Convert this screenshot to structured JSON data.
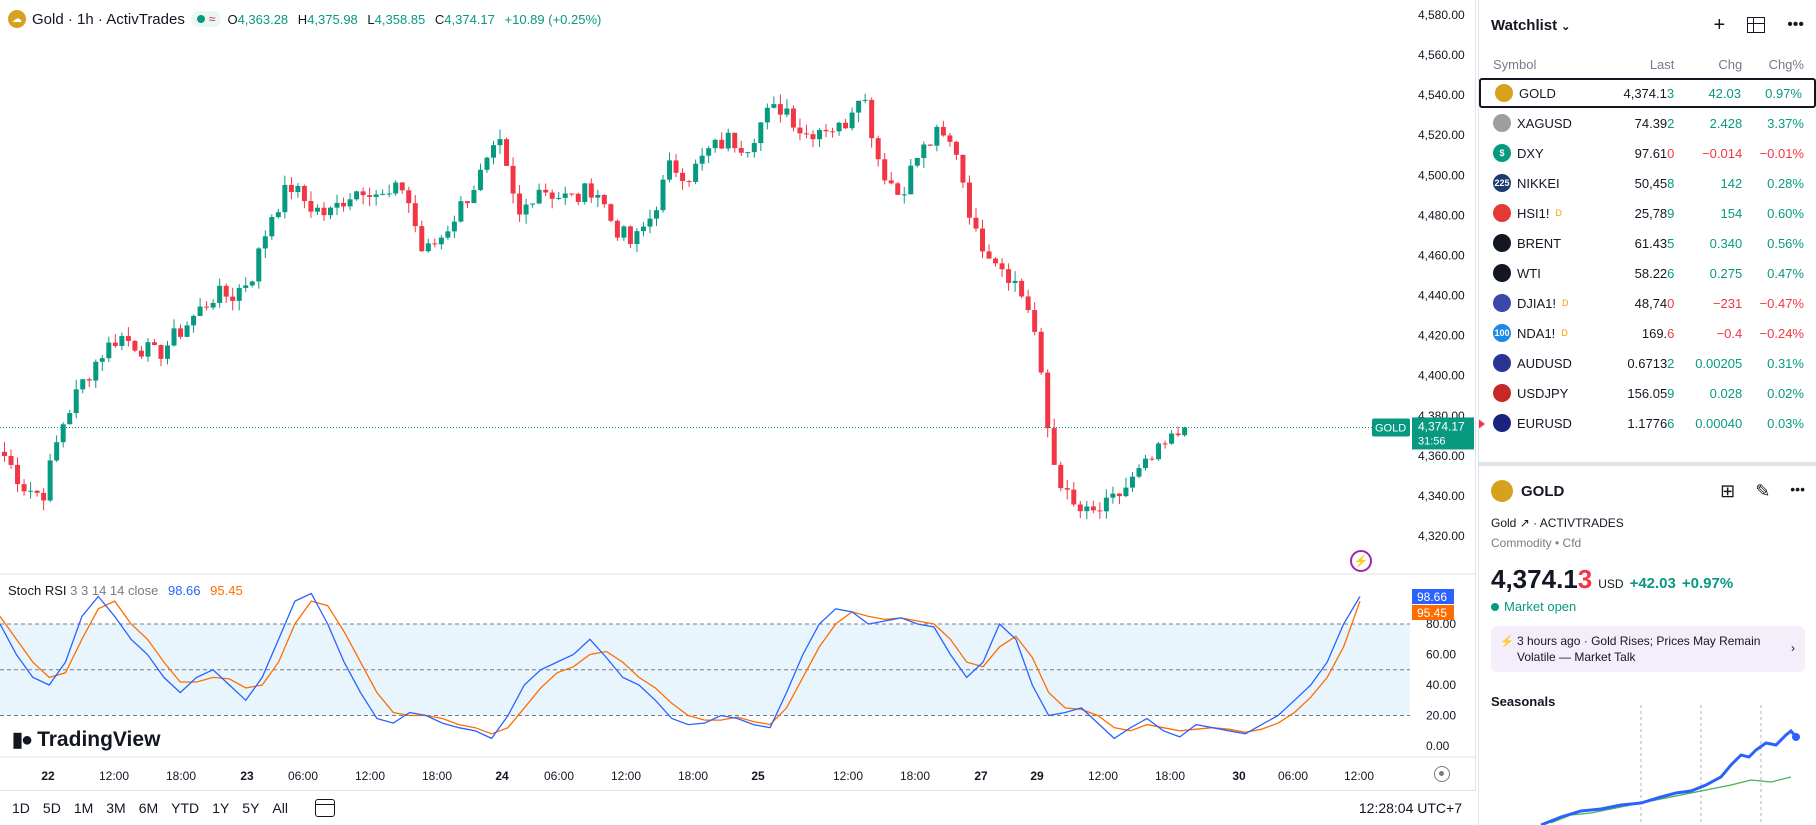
{
  "legend": {
    "symbol": "Gold · 1h · ActivTrades",
    "open_label": "O",
    "open": "4,363.28",
    "high_label": "H",
    "high": "4,375.98",
    "low_label": "L",
    "low": "4,358.85",
    "close_label": "C",
    "close": "4,374.17",
    "change": "+10.89 (+0.25%)"
  },
  "price_axis": {
    "labels": [
      "4,580.00",
      "4,560.00",
      "4,540.00",
      "4,520.00",
      "4,500.00",
      "4,480.00",
      "4,460.00",
      "4,440.00",
      "4,420.00",
      "4,400.00",
      "4,380.00",
      "4,360.00",
      "4,340.00",
      "4,320.00"
    ],
    "current_tag": "GOLD",
    "current_price": "4,374.17",
    "countdown": "31:56"
  },
  "stoch": {
    "name": "Stoch RSI",
    "params": "3 3 14 14 close",
    "k_value": "98.66",
    "d_value": "95.45",
    "axis_labels": [
      "80.00",
      "60.00",
      "40.00",
      "20.00",
      "0.00"
    ]
  },
  "time_axis": {
    "labels": [
      "22",
      "12:00",
      "18:00",
      "23",
      "06:00",
      "12:00",
      "18:00",
      "24",
      "06:00",
      "12:00",
      "18:00",
      "25",
      "12:00",
      "18:00",
      "27",
      "29",
      "12:00",
      "18:00",
      "30",
      "06:00",
      "12:00"
    ]
  },
  "branding": {
    "logo_text": "TradingView"
  },
  "bottom_bar": {
    "ranges": [
      "1D",
      "5D",
      "1M",
      "3M",
      "6M",
      "YTD",
      "1Y",
      "5Y",
      "All"
    ],
    "clock": "12:28:04 UTC+7"
  },
  "watchlist": {
    "title": "Watchlist",
    "columns": {
      "symbol": "Symbol",
      "last": "Last",
      "chg": "Chg",
      "pct": "Chg%"
    },
    "rows": [
      {
        "symbol": "GOLD",
        "last": "4,374.13",
        "chg": "42.03",
        "pct": "0.97%",
        "dir": "pos",
        "icon_color": "#d6a21e",
        "icon_text": "",
        "delayed": ""
      },
      {
        "symbol": "XAGUSD",
        "last": "74.392",
        "chg": "2.428",
        "pct": "3.37%",
        "dir": "pos",
        "icon_color": "#9e9e9e",
        "icon_text": "",
        "delayed": ""
      },
      {
        "symbol": "DXY",
        "last": "97.610",
        "chg": "−0.014",
        "pct": "−0.01%",
        "dir": "neg",
        "icon_color": "#089981",
        "icon_text": "$",
        "delayed": ""
      },
      {
        "symbol": "NIKKEI",
        "last": "50,458",
        "chg": "142",
        "pct": "0.28%",
        "dir": "pos",
        "icon_color": "#1e3a6e",
        "icon_text": "225",
        "delayed": ""
      },
      {
        "symbol": "HSI1!",
        "last": "25,789",
        "chg": "154",
        "pct": "0.60%",
        "dir": "pos",
        "icon_color": "#e53935",
        "icon_text": "",
        "delayed": "D"
      },
      {
        "symbol": "BRENT",
        "last": "61.435",
        "chg": "0.340",
        "pct": "0.56%",
        "dir": "pos",
        "icon_color": "#131722",
        "icon_text": "",
        "delayed": ""
      },
      {
        "symbol": "WTI",
        "last": "58.226",
        "chg": "0.275",
        "pct": "0.47%",
        "dir": "pos",
        "icon_color": "#131722",
        "icon_text": "",
        "delayed": ""
      },
      {
        "symbol": "DJIA1!",
        "last": "48,740",
        "chg": "−231",
        "pct": "−0.47%",
        "dir": "neg",
        "icon_color": "#3949ab",
        "icon_text": "",
        "delayed": "D"
      },
      {
        "symbol": "NDA1!",
        "last": "169.6",
        "chg": "−0.4",
        "pct": "−0.24%",
        "dir": "neg",
        "icon_color": "#1e88e5",
        "icon_text": "100",
        "delayed": "D"
      },
      {
        "symbol": "AUDUSD",
        "last": "0.67132",
        "chg": "0.00205",
        "pct": "0.31%",
        "dir": "pos",
        "icon_color": "#283593",
        "icon_text": "",
        "delayed": ""
      },
      {
        "symbol": "USDJPY",
        "last": "156.059",
        "chg": "0.028",
        "pct": "0.02%",
        "dir": "pos",
        "icon_color": "#c62828",
        "icon_text": "",
        "delayed": ""
      },
      {
        "symbol": "EURUSD",
        "last": "1.17766",
        "chg": "0.00040",
        "pct": "0.03%",
        "dir": "pos",
        "icon_color": "#1a237e",
        "icon_text": "",
        "delayed": ""
      }
    ]
  },
  "details": {
    "symbol": "GOLD",
    "name": "Gold",
    "exchange": "ACTIVTRADES",
    "category": "Commodity • Cfd",
    "price_main": "4,374.1",
    "price_last_digit": "3",
    "currency": "USD",
    "change": "+42.03",
    "change_pct": "+0.97%",
    "market_status": "Market open",
    "news_ago": "3 hours ago",
    "news_text": "Gold Rises; Prices May Remain Volatile — Market Talk",
    "seasonals_title": "Seasonals"
  },
  "colors": {
    "up": "#089981",
    "down": "#f23645",
    "k_line": "#2962ff",
    "d_line": "#ff6d00"
  }
}
